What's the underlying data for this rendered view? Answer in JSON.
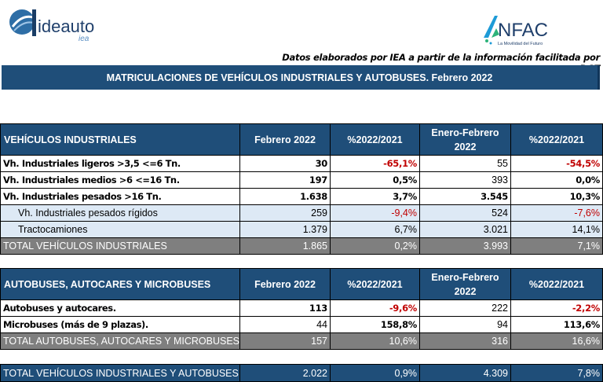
{
  "logos": {
    "left_name": "ideauto",
    "left_sub": "iea",
    "right_name": "NFAC",
    "right_letter": "A",
    "right_tagline": "La Movilidad del Futuro"
  },
  "source_note": "Datos elaborados por IEA a partir de la información facilitada por DGT",
  "title": "MATRICULACIONES DE VEHÍCULOS INDUSTRIALES Y AUTOBUSES.  Febrero 2022",
  "colors": {
    "header_blue": "#1f4e79",
    "subrow_blue": "#dde9f5",
    "total_gray": "#7f7f7f",
    "negative_red": "#c00000"
  },
  "industrial": {
    "headers": [
      "VEHÍCULOS INDUSTRIALES",
      "Febrero 2022",
      "%2022/2021",
      "Enero-Febrero 2022",
      "%2022/2021"
    ],
    "rows": [
      {
        "label": "Vh. Industriales ligeros >3,5 <=6 Tn.",
        "feb": "30",
        "pct1": "-65,1%",
        "ytd": "55",
        "pct2": "-54,5%"
      },
      {
        "label": "Vh. Industriales medios >6  <=16 Tn.",
        "feb": "197",
        "pct1": "0,5%",
        "ytd": "393",
        "pct2": "0,0%"
      },
      {
        "label": "Vh. Industriales  pesados >16 Tn.",
        "feb": "1.638",
        "pct1": "3,7%",
        "ytd": "3.545",
        "pct2": "10,3%"
      },
      {
        "label": "Vh. Industriales pesados rígidos",
        "feb": "259",
        "pct1": "-9,4%",
        "ytd": "524",
        "pct2": "-7,6%"
      },
      {
        "label": "Tractocamiones",
        "feb": "1.379",
        "pct1": "6,7%",
        "ytd": "3.021",
        "pct2": "14,1%"
      }
    ],
    "total": {
      "label": "TOTAL VEHÍCULOS INDUSTRIALES",
      "feb": "1.865",
      "pct1": "0,2%",
      "ytd": "3.993",
      "pct2": "7,1%"
    }
  },
  "buses": {
    "headers": [
      "AUTOBUSES, AUTOCARES Y MICROBUSES",
      "Febrero 2022",
      "%2022/2021",
      "Enero-Febrero 2022",
      "%2022/2021"
    ],
    "rows": [
      {
        "label": "Autobuses y autocares.",
        "feb": "113",
        "pct1": "-9,6%",
        "ytd": "222",
        "pct2": "-2,2%"
      },
      {
        "label": "Microbuses (más de 9 plazas).",
        "feb": "44",
        "pct1": "158,8%",
        "ytd": "94",
        "pct2": "113,6%"
      }
    ],
    "total": {
      "label": "TOTAL AUTOBUSES, AUTOCARES Y MICROBUSES",
      "feb": "157",
      "pct1": "10,6%",
      "ytd": "316",
      "pct2": "16,6%"
    }
  },
  "grand_total": {
    "label": "TOTAL VEHÍCULOS INDUSTRIALES Y AUTOBUSES",
    "feb": "2.022",
    "pct1": "0,9%",
    "ytd": "4.309",
    "pct2": "7,8%"
  }
}
